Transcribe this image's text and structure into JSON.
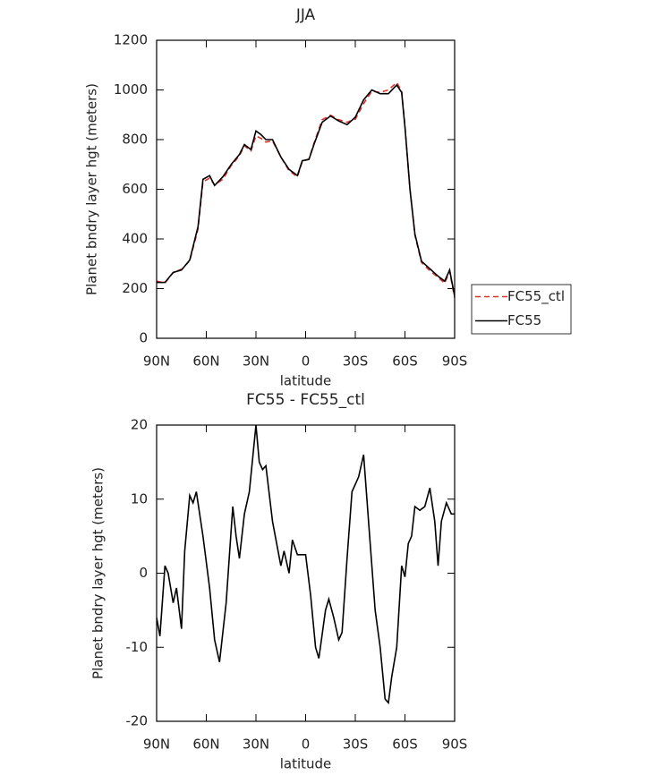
{
  "chart_data": [
    {
      "type": "line",
      "title": "JJA",
      "xlabel": "latitude",
      "ylabel": "Planet bndry layer hgt (meters)",
      "x": [
        90,
        85,
        80,
        75,
        70,
        65,
        62,
        58,
        55,
        50,
        45,
        40,
        37,
        33,
        30,
        27,
        24,
        20,
        15,
        10,
        5,
        2,
        -2,
        -5,
        -10,
        -15,
        -20,
        -25,
        -30,
        -35,
        -40,
        -45,
        -50,
        -55,
        -58,
        -60,
        -63,
        -66,
        -70,
        -75,
        -80,
        -84,
        -87,
        -90
      ],
      "series": [
        {
          "name": "FC55_ctl",
          "color": "#e0302a",
          "style": "dashed",
          "values": [
            230,
            222,
            265,
            278,
            312,
            440,
            630,
            645,
            618,
            640,
            695,
            735,
            775,
            755,
            815,
            805,
            790,
            795,
            730,
            675,
            650,
            712,
            722,
            785,
            880,
            898,
            880,
            870,
            882,
            945,
            995,
            990,
            1000,
            1030,
            995,
            855,
            600,
            415,
            305,
            272,
            245,
            222,
            270,
            162
          ]
        },
        {
          "name": "FC55",
          "color": "#000000",
          "style": "solid",
          "values": [
            225,
            225,
            265,
            275,
            315,
            450,
            640,
            655,
            615,
            650,
            700,
            740,
            780,
            760,
            835,
            820,
            800,
            800,
            730,
            680,
            655,
            715,
            720,
            780,
            870,
            895,
            875,
            860,
            890,
            960,
            1000,
            985,
            985,
            1020,
            990,
            850,
            600,
            420,
            310,
            280,
            250,
            230,
            275,
            170
          ]
        }
      ],
      "xlim": [
        90,
        -90
      ],
      "xticks": [
        {
          "value": 90,
          "label": "90N"
        },
        {
          "value": 60,
          "label": "60N"
        },
        {
          "value": 30,
          "label": "30N"
        },
        0,
        {
          "value": -30,
          "label": "30S"
        },
        {
          "value": -60,
          "label": "60S"
        },
        {
          "value": -90,
          "label": "90S"
        }
      ],
      "ylim": [
        0,
        1200
      ],
      "yticks": [
        0,
        200,
        400,
        600,
        800,
        1000,
        1200
      ],
      "legend": "right"
    },
    {
      "type": "line",
      "title": "FC55 - FC55_ctl",
      "xlabel": "latitude",
      "ylabel": "Planet bndry layer hgt (meters)",
      "x": [
        90,
        88,
        85,
        83,
        80,
        78,
        75,
        73,
        70,
        68,
        66,
        62,
        58,
        55,
        52,
        48,
        44,
        42,
        40,
        37,
        34,
        30,
        28,
        26,
        24,
        20,
        15,
        13,
        10,
        8,
        5,
        0,
        -3,
        -6,
        -8,
        -12,
        -14,
        -17,
        -20,
        -22,
        -25,
        -28,
        -32,
        -35,
        -38,
        -42,
        -45,
        -48,
        -50,
        -52,
        -55,
        -58,
        -60,
        -62,
        -64,
        -66,
        -69,
        -72,
        -75,
        -78,
        -80,
        -82,
        -85,
        -88,
        -90
      ],
      "values": [
        -6,
        -8.5,
        1,
        0,
        -4,
        -2,
        -7.5,
        3,
        10.5,
        9.5,
        11,
        5,
        -2,
        -9,
        -12,
        -4,
        9,
        5,
        2,
        8,
        11,
        20,
        15,
        14,
        14.5,
        7,
        1,
        3,
        0,
        4.5,
        2.5,
        2.5,
        -3,
        -10,
        -11.5,
        -5,
        -3.5,
        -6,
        -9,
        -8,
        2,
        11,
        13,
        16,
        7,
        -5,
        -10,
        -17,
        -17.5,
        -14,
        -10,
        1,
        -0.5,
        4,
        5,
        9,
        8.5,
        9,
        11.5,
        7,
        1,
        7,
        9.5,
        8,
        8
      ],
      "color": "#000000",
      "xlim": [
        90,
        -90
      ],
      "xticks": [
        {
          "value": 90,
          "label": "90N"
        },
        {
          "value": 60,
          "label": "60N"
        },
        {
          "value": 30,
          "label": "30N"
        },
        0,
        {
          "value": -30,
          "label": "30S"
        },
        {
          "value": -60,
          "label": "60S"
        },
        {
          "value": -90,
          "label": "90S"
        }
      ],
      "ylim": [
        -20,
        20
      ],
      "yticks": [
        -20,
        -10,
        0,
        10,
        20
      ]
    }
  ]
}
